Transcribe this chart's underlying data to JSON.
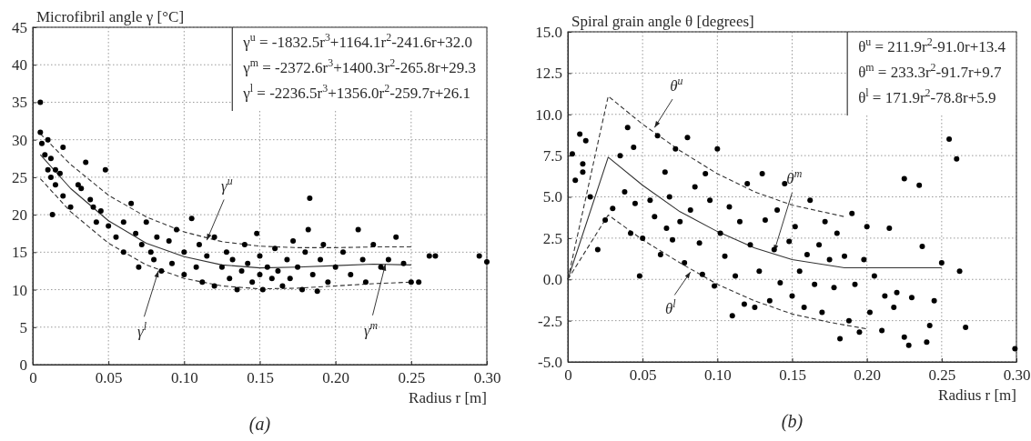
{
  "chart_data": [
    {
      "type": "scatter",
      "ylabel": "Microfibril angle γ [°C]",
      "xlabel": "Radius r  [m]",
      "xlim": [
        0,
        0.3
      ],
      "ylim": [
        0,
        45
      ],
      "xticks": [
        0,
        0.05,
        {
          "value": 0.1,
          "label": "0.10"
        },
        0.15,
        {
          "value": 0.2,
          "label": "0.20"
        },
        0.25,
        {
          "value": 0.3,
          "label": "0.30"
        }
      ],
      "yticks": [
        0,
        5,
        10,
        15,
        20,
        25,
        30,
        35,
        40,
        45
      ],
      "grid": true,
      "series": [
        {
          "type": "scatter",
          "marker": "circle",
          "color": "#000000",
          "x": [
            0.005,
            0.006,
            0.008,
            0.01,
            0.01,
            0.012,
            0.012,
            0.015,
            0.015,
            0.018,
            0.02,
            0.02,
            0.013,
            0.005,
            0.025,
            0.03,
            0.032,
            0.035,
            0.038,
            0.04,
            0.042,
            0.045,
            0.048,
            0.05,
            0.055,
            0.06,
            0.06,
            0.065,
            0.068,
            0.07,
            0.072,
            0.075,
            0.078,
            0.08,
            0.082,
            0.085,
            0.09,
            0.092,
            0.095,
            0.1,
            0.1,
            0.105,
            0.108,
            0.11,
            0.112,
            0.115,
            0.12,
            0.12,
            0.125,
            0.128,
            0.13,
            0.132,
            0.135,
            0.138,
            0.14,
            0.142,
            0.145,
            0.148,
            0.15,
            0.15,
            0.152,
            0.155,
            0.158,
            0.16,
            0.162,
            0.165,
            0.168,
            0.17,
            0.172,
            0.175,
            0.178,
            0.18,
            0.182,
            0.185,
            0.188,
            0.19,
            0.192,
            0.195,
            0.2,
            0.205,
            0.21,
            0.215,
            0.218,
            0.22,
            0.225,
            0.23,
            0.235,
            0.24,
            0.245,
            0.25,
            0.255,
            0.262,
            0.266,
            0.295,
            0.3,
            0.183
          ],
          "values": [
            31,
            29.5,
            28,
            30,
            26,
            27.5,
            25,
            26,
            24,
            25.5,
            22.5,
            29,
            20,
            35,
            21,
            24,
            23.5,
            27,
            22,
            21,
            19,
            20.5,
            26,
            18.5,
            17,
            19,
            15,
            21.5,
            17.5,
            13,
            16,
            19,
            15,
            14,
            17,
            12.5,
            16.5,
            13.5,
            18,
            15,
            12,
            19.5,
            13,
            16,
            11,
            14.5,
            10.5,
            17,
            13,
            15,
            11.5,
            14,
            10,
            12.5,
            16,
            13.5,
            11,
            17.5,
            12,
            14.5,
            10,
            13,
            11.5,
            15.5,
            12.5,
            10.5,
            14,
            11.5,
            16.5,
            13,
            10,
            15,
            18,
            12,
            9.8,
            14,
            16,
            11,
            13,
            15,
            12,
            18,
            14,
            11,
            16,
            13,
            14,
            17,
            13.5,
            11,
            11,
            14.5,
            14.5,
            14.5,
            13.7,
            22.2
          ]
        },
        {
          "type": "line",
          "color": "#333333",
          "line_style": "dashed",
          "x": [
            0.005,
            0.025,
            0.05,
            0.075,
            0.1,
            0.125,
            0.15,
            0.175,
            0.2,
            0.225,
            0.25
          ],
          "values": [
            30.8,
            26.7,
            22.6,
            19.7,
            17.7,
            16.4,
            15.8,
            15.6,
            15.6,
            15.7,
            15.7
          ]
        },
        {
          "type": "line",
          "color": "#333333",
          "line_style": "solid",
          "x": [
            0.005,
            0.025,
            0.05,
            0.075,
            0.1,
            0.125,
            0.15,
            0.175,
            0.2,
            0.225,
            0.25
          ],
          "values": [
            28.0,
            23.5,
            19.2,
            16.2,
            14.4,
            13.3,
            12.9,
            13.0,
            13.2,
            13.4,
            13.3
          ]
        },
        {
          "type": "line",
          "color": "#333333",
          "line_style": "dashed",
          "x": [
            0.005,
            0.025,
            0.05,
            0.075,
            0.1,
            0.125,
            0.15,
            0.175,
            0.2,
            0.225,
            0.25
          ],
          "values": [
            24.8,
            20.4,
            16.2,
            13.3,
            11.5,
            10.5,
            10.1,
            10.2,
            10.5,
            10.8,
            11.0
          ]
        }
      ],
      "annotations": [
        "γ$^{u}$ = -1832.5r$^{3}$+1164.1r$^{2}$-241.6r+32.0",
        "γ$^{m}$ = -2372.6r$^{3}$+1400.3r$^{2}$-265.8r+29.3",
        "γ$^{l}$ = -2236.5r$^{3}$+1356.0r$^{2}$-259.7r+26.1",
        {
          "text": "γ$^{u}$",
          "x": 0.115,
          "y": 16.6
        },
        {
          "text": "γ$^{l}$",
          "x": 0.083,
          "y": 12.5
        },
        {
          "text": "γ$^{m}$",
          "x": 0.233,
          "y": 13.4
        },
        "(a)"
      ]
    },
    {
      "type": "scatter",
      "ylabel": "Spiral grain angle θ [degrees]",
      "xlabel": "Radius r  [m]",
      "xlim": [
        0,
        0.3
      ],
      "ylim": [
        -5,
        15
      ],
      "xticks": [
        0,
        0.05,
        {
          "value": 0.1,
          "label": "0.10"
        },
        0.15,
        {
          "value": 0.2,
          "label": "0.20"
        },
        0.25,
        {
          "value": 0.3,
          "label": "0.30"
        }
      ],
      "yticks": [
        {
          "value": -5,
          "label": "-5.0"
        },
        -2.5,
        {
          "value": 0,
          "label": "0.0"
        },
        2.5,
        {
          "value": 5,
          "label": "5.0"
        },
        7.5,
        {
          "value": 10,
          "label": "10.0"
        },
        12.5,
        {
          "value": 15,
          "label": "15.0"
        }
      ],
      "grid": true,
      "series": [
        {
          "type": "scatter",
          "marker": "circle",
          "color": "#000000",
          "x": [
            0.003,
            0.005,
            0.008,
            0.01,
            0.01,
            0.012,
            0.015,
            0.02,
            0.025,
            0.03,
            0.035,
            0.038,
            0.04,
            0.042,
            0.044,
            0.045,
            0.048,
            0.05,
            0.055,
            0.058,
            0.06,
            0.062,
            0.065,
            0.066,
            0.068,
            0.07,
            0.072,
            0.075,
            0.078,
            0.08,
            0.082,
            0.085,
            0.088,
            0.09,
            0.092,
            0.095,
            0.098,
            0.1,
            0.102,
            0.105,
            0.108,
            0.11,
            0.112,
            0.115,
            0.118,
            0.12,
            0.122,
            0.125,
            0.128,
            0.13,
            0.132,
            0.135,
            0.138,
            0.14,
            0.142,
            0.145,
            0.148,
            0.15,
            0.152,
            0.155,
            0.158,
            0.16,
            0.162,
            0.165,
            0.168,
            0.17,
            0.172,
            0.175,
            0.178,
            0.18,
            0.182,
            0.185,
            0.188,
            0.19,
            0.192,
            0.195,
            0.198,
            0.2,
            0.202,
            0.205,
            0.21,
            0.212,
            0.215,
            0.218,
            0.22,
            0.225,
            0.228,
            0.23,
            0.235,
            0.237,
            0.24,
            0.242,
            0.245,
            0.25,
            0.255,
            0.26,
            0.262,
            0.266,
            0.299,
            0.225
          ],
          "values": [
            7.6,
            6,
            8.8,
            6.5,
            7,
            8.4,
            5,
            1.8,
            3.6,
            4.3,
            7.5,
            5.3,
            9.2,
            2.8,
            8,
            4.6,
            0.2,
            2.5,
            4.8,
            3.8,
            8.7,
            1.5,
            6.5,
            3.1,
            5,
            2.4,
            7.9,
            3.5,
            1,
            8.6,
            4.2,
            5.6,
            2.2,
            0.3,
            6.4,
            4.8,
            -0.4,
            7.9,
            2.8,
            1.4,
            4.4,
            -2.2,
            0.2,
            3.5,
            -1.5,
            5.8,
            2.1,
            -1.7,
            0.5,
            6.4,
            3.6,
            -1.3,
            1.8,
            4.2,
            -0.2,
            5.8,
            2.3,
            -1,
            3.2,
            0.5,
            -1.7,
            1.5,
            4.8,
            -0.3,
            2.1,
            -2,
            3.5,
            1.2,
            -0.5,
            2.8,
            -3.6,
            1.4,
            -2.5,
            4,
            -0.3,
            -3.2,
            1.2,
            3.2,
            -2,
            0.2,
            -3.1,
            -1,
            3.1,
            -1.7,
            -0.8,
            -3.5,
            -4,
            -1.1,
            5.7,
            2,
            -3.8,
            -2.8,
            -1.3,
            1,
            8.5,
            7.3,
            0.5,
            -2.9,
            -4.2,
            6.1
          ]
        },
        {
          "type": "line",
          "color": "#333333",
          "line_style": "dashed",
          "x": [
            0,
            0.027,
            0.05,
            0.075,
            0.1,
            0.125,
            0.15,
            0.185
          ],
          "values": [
            0,
            11.1,
            9.4,
            7.8,
            6.4,
            5.3,
            4.5,
            3.8
          ]
        },
        {
          "type": "line",
          "color": "#333333",
          "line_style": "solid",
          "x": [
            0,
            0.027,
            0.05,
            0.075,
            0.1,
            0.125,
            0.15,
            0.185,
            0.25
          ],
          "values": [
            0,
            7.4,
            5.7,
            4.1,
            2.9,
            1.9,
            1.2,
            0.7,
            0.7
          ]
        },
        {
          "type": "line",
          "color": "#333333",
          "line_style": "dashed",
          "x": [
            0,
            0.027,
            0.05,
            0.075,
            0.1,
            0.125,
            0.15,
            0.175,
            0.2
          ],
          "values": [
            0,
            3.9,
            2.4,
            1.0,
            -0.3,
            -1.3,
            -2.1,
            -2.6,
            -3.0
          ]
        }
      ],
      "annotations": [
        "θ$^{u}$ = 211.9r$^{2}$-91.0r+13.4",
        "θ$^{m}$ = 233.3r$^{2}$-91.7r+9.7",
        "θ$^{l}$ = 171.9r$^{2}$-78.8r+5.9",
        {
          "text": "θ$^{u}$",
          "x": 0.058,
          "y": 9.2
        },
        {
          "text": "θ$^{m}$",
          "x": 0.138,
          "y": 1.7
        },
        {
          "text": "θ$^{l}$",
          "x": 0.082,
          "y": 0.45
        },
        "(b)"
      ]
    }
  ]
}
